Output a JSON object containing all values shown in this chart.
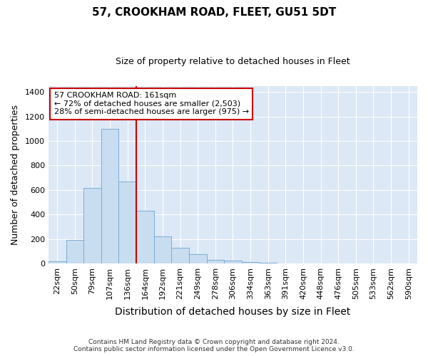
{
  "title": "57, CROOKHAM ROAD, FLEET, GU51 5DT",
  "subtitle": "Size of property relative to detached houses in Fleet",
  "xlabel": "Distribution of detached houses by size in Fleet",
  "ylabel": "Number of detached properties",
  "bin_labels": [
    "22sqm",
    "50sqm",
    "79sqm",
    "107sqm",
    "136sqm",
    "164sqm",
    "192sqm",
    "221sqm",
    "249sqm",
    "278sqm",
    "306sqm",
    "334sqm",
    "363sqm",
    "391sqm",
    "420sqm",
    "448sqm",
    "476sqm",
    "505sqm",
    "533sqm",
    "562sqm",
    "590sqm"
  ],
  "bar_heights": [
    15,
    190,
    615,
    1100,
    670,
    430,
    220,
    125,
    75,
    30,
    20,
    10,
    5,
    0,
    0,
    0,
    0,
    0,
    0,
    0,
    0
  ],
  "bar_color": "#c9ddf0",
  "bar_edge_color": "#7aadd4",
  "annotation_line1": "57 CROOKHAM ROAD: 161sqm",
  "annotation_line2": "← 72% of detached houses are smaller (2,503)",
  "annotation_line3": "28% of semi-detached houses are larger (975) →",
  "vline_color": "#cc0000",
  "vline_x_index": 5.0,
  "ylim_max": 1450,
  "yticks": [
    0,
    200,
    400,
    600,
    800,
    1000,
    1200,
    1400
  ],
  "footer_line1": "Contains HM Land Registry data © Crown copyright and database right 2024.",
  "footer_line2": "Contains public sector information licensed under the Open Government Licence v3.0.",
  "fig_bg_color": "#ffffff",
  "plot_bg_color": "#dce8f5",
  "grid_color": "#ffffff",
  "title_fontsize": 11,
  "subtitle_fontsize": 9,
  "axis_label_fontsize": 9,
  "tick_fontsize": 8,
  "footer_fontsize": 6.5
}
